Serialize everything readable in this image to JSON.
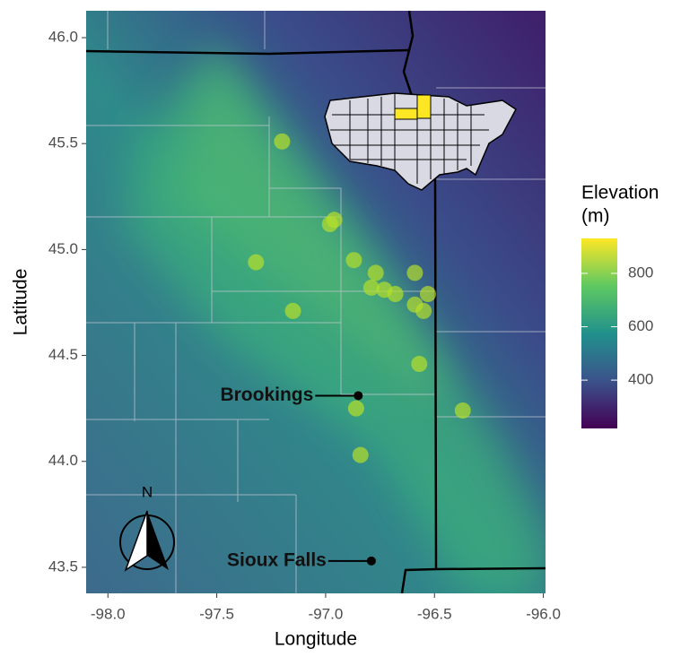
{
  "chart_data": {
    "type": "scatter",
    "x_label": "Longitude",
    "y_label": "Latitude",
    "xlim": [
      -98.1,
      -95.99
    ],
    "ylim": [
      43.377,
      46.127
    ],
    "xticks": [
      {
        "value": -98,
        "label": "-98.0"
      },
      -97.5,
      {
        "value": -97,
        "label": "-97.0"
      },
      -96.5,
      {
        "value": -96,
        "label": "-96.0"
      }
    ],
    "yticks": [
      43.5,
      {
        "value": 44,
        "label": "44.0"
      },
      44.5,
      {
        "value": 45,
        "label": "45.0"
      },
      45.5,
      {
        "value": 46,
        "label": "46.0"
      }
    ],
    "grid": false,
    "series": [
      {
        "color": "#b5de2b",
        "x": [
          -97.2,
          -96.98,
          -96.96,
          -97.32,
          -96.87,
          -96.77,
          -96.59,
          -96.79,
          -96.73,
          -96.68,
          -96.53,
          -96.59,
          -96.55,
          -97.15,
          -96.57,
          -96.86,
          -96.37,
          -96.84
        ],
        "values": [
          45.51,
          45.12,
          45.14,
          44.94,
          44.95,
          44.89,
          44.89,
          44.82,
          44.81,
          44.79,
          44.79,
          44.74,
          44.71,
          44.71,
          44.46,
          44.25,
          44.24,
          44.03
        ]
      }
    ],
    "cities": [
      {
        "name": "Brookings",
        "x": -96.85,
        "y": 44.31
      },
      {
        "name": "Sioux Falls",
        "x": -96.79,
        "y": 43.53
      }
    ],
    "north_arrow": "N",
    "colorbar": {
      "title_lines": [
        "Elevation",
        "(m)"
      ],
      "lim": [
        219,
        931
      ],
      "ticks": [
        400,
        600,
        800
      ],
      "colors": [
        "#440154",
        "#3b528b",
        "#21918c",
        "#5ec962",
        "#fde725"
      ]
    }
  }
}
